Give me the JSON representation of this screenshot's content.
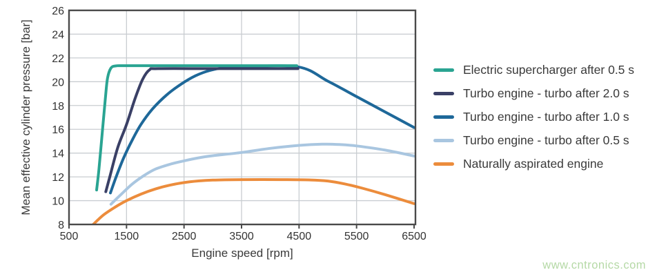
{
  "chart_data": {
    "type": "line",
    "title": "",
    "xlabel": "Engine speed [rpm]",
    "ylabel": "Mean effective cylinder pressure [bar]",
    "xlim": [
      500,
      6500
    ],
    "ylim": [
      8,
      26
    ],
    "x_ticks": [
      500,
      1500,
      2500,
      3500,
      4500,
      5500,
      6500
    ],
    "y_ticks": [
      8,
      10,
      12,
      14,
      16,
      18,
      20,
      22,
      24,
      26
    ],
    "grid": true,
    "legend_position": "right",
    "frame_color": "#4a4a4a",
    "grid_color": "#c9cdd1",
    "series": [
      {
        "name": "Electric supercharger after 0.5 s",
        "color": "#2aa492",
        "points": [
          [
            980,
            10.9
          ],
          [
            1020,
            12.6
          ],
          [
            1080,
            15.8
          ],
          [
            1130,
            18.5
          ],
          [
            1170,
            20.3
          ],
          [
            1230,
            21.15
          ],
          [
            1320,
            21.33
          ],
          [
            1500,
            21.35
          ],
          [
            2500,
            21.35
          ],
          [
            3500,
            21.35
          ],
          [
            4460,
            21.35
          ]
        ]
      },
      {
        "name": "Turbo engine - turbo after 2.0 s",
        "color": "#3a4066",
        "points": [
          [
            1140,
            10.75
          ],
          [
            1220,
            12.2
          ],
          [
            1350,
            14.5
          ],
          [
            1500,
            16.4
          ],
          [
            1650,
            18.6
          ],
          [
            1780,
            20.2
          ],
          [
            1900,
            21.0
          ],
          [
            2050,
            21.1
          ],
          [
            3000,
            21.1
          ],
          [
            4480,
            21.1
          ]
        ]
      },
      {
        "name": "Turbo engine - turbo after 1.0 s",
        "color": "#1e6899",
        "points": [
          [
            1220,
            10.65
          ],
          [
            1320,
            12.0
          ],
          [
            1450,
            13.6
          ],
          [
            1600,
            15.1
          ],
          [
            1750,
            16.4
          ],
          [
            1950,
            17.7
          ],
          [
            2200,
            18.9
          ],
          [
            2450,
            19.8
          ],
          [
            2700,
            20.5
          ],
          [
            2950,
            20.95
          ],
          [
            3200,
            21.18
          ],
          [
            3500,
            21.25
          ],
          [
            4480,
            21.25
          ],
          [
            5000,
            20.05
          ],
          [
            5500,
            18.75
          ],
          [
            6000,
            17.45
          ],
          [
            6500,
            16.15
          ]
        ]
      },
      {
        "name": "Turbo engine - turbo after 0.5 s",
        "color": "#a9c6e0",
        "points": [
          [
            1230,
            9.7
          ],
          [
            1400,
            10.5
          ],
          [
            1600,
            11.4
          ],
          [
            1800,
            12.1
          ],
          [
            2000,
            12.65
          ],
          [
            2250,
            13.05
          ],
          [
            2500,
            13.35
          ],
          [
            2750,
            13.6
          ],
          [
            3000,
            13.78
          ],
          [
            3500,
            14.05
          ],
          [
            4000,
            14.4
          ],
          [
            4500,
            14.65
          ],
          [
            4900,
            14.75
          ],
          [
            5200,
            14.72
          ],
          [
            5500,
            14.6
          ],
          [
            6000,
            14.25
          ],
          [
            6500,
            13.75
          ]
        ]
      },
      {
        "name": "Naturally aspirated engine",
        "color": "#ec8c3c",
        "points": [
          [
            920,
            8.0
          ],
          [
            1100,
            8.8
          ],
          [
            1300,
            9.45
          ],
          [
            1500,
            10.0
          ],
          [
            1750,
            10.55
          ],
          [
            2000,
            10.98
          ],
          [
            2250,
            11.3
          ],
          [
            2500,
            11.52
          ],
          [
            2750,
            11.66
          ],
          [
            3000,
            11.73
          ],
          [
            3500,
            11.77
          ],
          [
            4200,
            11.77
          ],
          [
            4700,
            11.74
          ],
          [
            5000,
            11.65
          ],
          [
            5300,
            11.4
          ],
          [
            5600,
            11.05
          ],
          [
            6000,
            10.5
          ],
          [
            6500,
            9.75
          ]
        ]
      }
    ]
  },
  "watermark": "www.cntronics.com"
}
